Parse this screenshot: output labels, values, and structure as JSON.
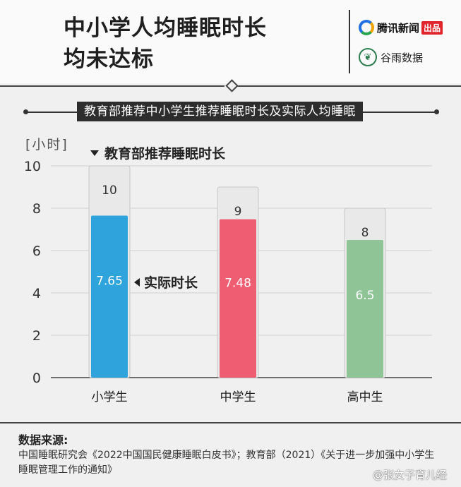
{
  "header": {
    "title_line1": "中小学人均睡眠时长",
    "title_line2": "均未达标",
    "logo1_text": "腾讯新闻",
    "logo1_badge": "出品",
    "logo2_text": "谷雨数据",
    "logo2_icon_char": "❦"
  },
  "subtitle": "教育部推荐中小学生推荐睡眠时长及实际人均睡眠",
  "legend": {
    "recommended": "教育部推荐睡眠时长",
    "actual": "实际时长"
  },
  "colors": {
    "recommended": "#e9e9e9",
    "series": [
      "#2fa3dc",
      "#ef5d72",
      "#8fc497"
    ]
  },
  "chart_data": {
    "type": "bar",
    "categories": [
      "小学生",
      "中学生",
      "高中生"
    ],
    "series": [
      {
        "name": "教育部推荐睡眠时长",
        "values": [
          10,
          9,
          8
        ]
      },
      {
        "name": "实际时长",
        "values": [
          7.65,
          7.48,
          6.5
        ]
      }
    ],
    "recommended_labels": [
      "10",
      "9",
      "8"
    ],
    "actual_labels": [
      "7.65",
      "7.48",
      "6.5"
    ],
    "yticks": [
      "0",
      "2",
      "4",
      "6",
      "8",
      "10"
    ],
    "ytick_values": [
      0,
      2,
      4,
      6,
      8,
      10
    ],
    "ylabel": "[小时]",
    "ylim": [
      0,
      10
    ]
  },
  "source": {
    "title": "数据来源:",
    "text": "中国睡眠研究会《2022中国国民健康睡眠白皮书》；教育部（2021）《关于进一步加强中小学生睡眠管理工作的通知》"
  },
  "watermark": "@张女子育儿经"
}
